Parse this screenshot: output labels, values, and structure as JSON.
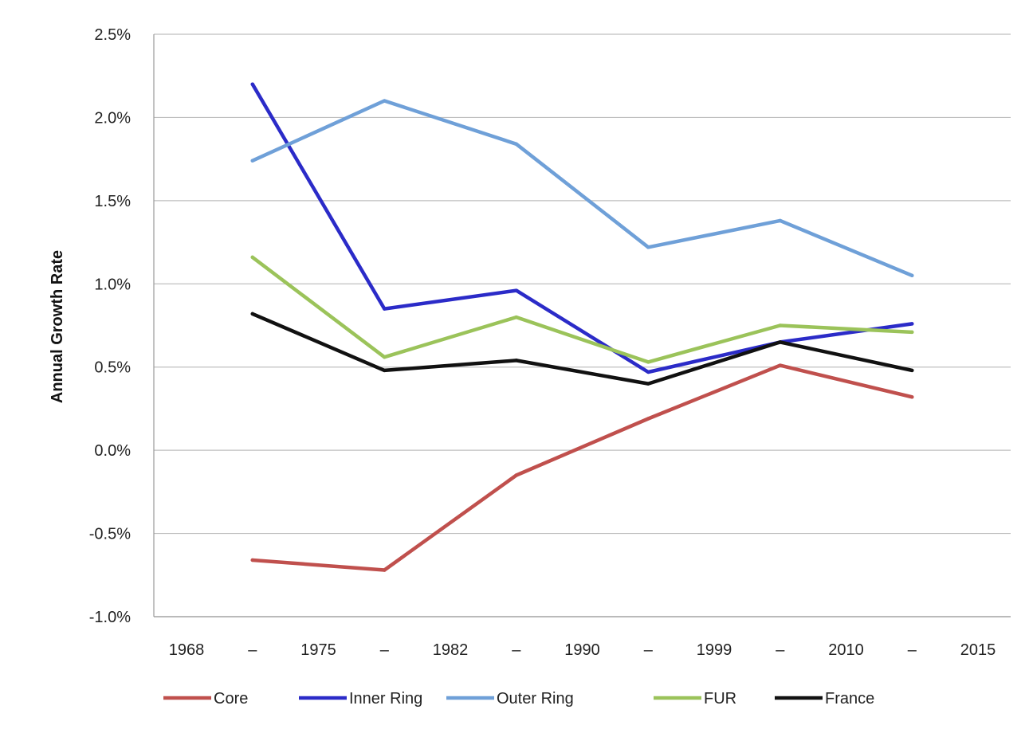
{
  "chart_data": {
    "type": "line",
    "ylabel": "Annual Growth Rate",
    "xlabel": "",
    "x_tick_labels": [
      "1968",
      "–",
      "1975",
      "–",
      "1982",
      "–",
      "1990",
      "–",
      "1999",
      "–",
      "2010",
      "–",
      "2015"
    ],
    "categories": [
      "1968–1975",
      "1975–1982",
      "1982–1990",
      "1990–1999",
      "1999–2010",
      "2010–2015"
    ],
    "y_tick_labels": [
      "2.5%",
      "2.0%",
      "1.5%",
      "1.0%",
      "0.5%",
      "0.0%",
      "-0.5%",
      "-1.0%"
    ],
    "ylim": [
      -1.0,
      2.5
    ],
    "y_unit": "%",
    "grid": true,
    "legend_position": "bottom",
    "series": [
      {
        "name": "Core",
        "color": "#c0504d",
        "values": [
          -0.66,
          -0.72,
          -0.15,
          0.19,
          0.51,
          0.32
        ]
      },
      {
        "name": "Inner Ring",
        "color": "#2b2bc8",
        "values": [
          2.2,
          0.85,
          0.96,
          0.47,
          0.65,
          0.76
        ]
      },
      {
        "name": "Outer Ring",
        "color": "#6fa0d8",
        "values": [
          1.74,
          2.1,
          1.84,
          1.22,
          1.38,
          1.05
        ]
      },
      {
        "name": "FUR",
        "color": "#9bc35a",
        "values": [
          1.16,
          0.56,
          0.8,
          0.53,
          0.75,
          0.71
        ]
      },
      {
        "name": "France",
        "color": "#111111",
        "values": [
          0.82,
          0.48,
          0.54,
          0.4,
          0.65,
          0.48
        ]
      }
    ]
  }
}
